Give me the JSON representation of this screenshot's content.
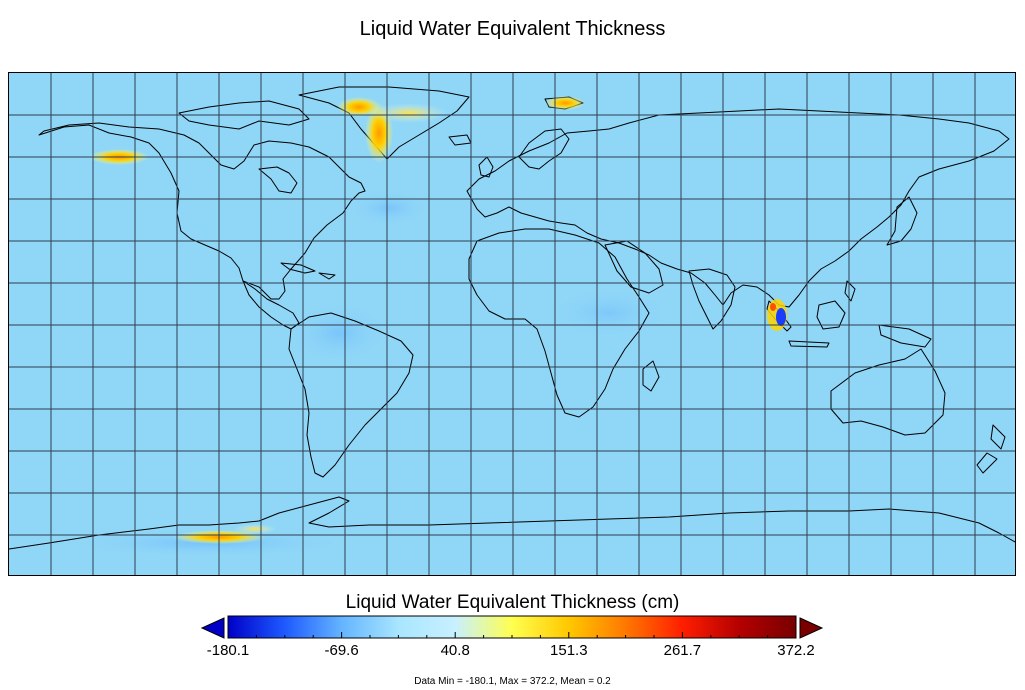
{
  "title": "Liquid Water Equivalent Thickness",
  "map": {
    "projection": "equirectangular",
    "grid": true,
    "ocean_color": "#8fd6f7",
    "land_color": "#8fd6f7",
    "coastline_color": "#000000",
    "anomalies": [
      {
        "region": "Greenland",
        "sign": "positive"
      },
      {
        "region": "Alaska",
        "sign": "positive"
      },
      {
        "region": "Svalbard",
        "sign": "positive"
      },
      {
        "region": "Antarctic Peninsula / Weddell",
        "sign": "positive"
      },
      {
        "region": "Sumatra",
        "sign": "mixed"
      }
    ]
  },
  "colorbar": {
    "title": "Liquid Water Equivalent Thickness (cm)",
    "min": -180.1,
    "max": 372.2,
    "ticks": [
      "-180.1",
      "-69.6",
      "40.8",
      "151.3",
      "261.7",
      "372.2"
    ],
    "colors": [
      "#0000c8",
      "#1e5aff",
      "#64b4ff",
      "#a8e6ff",
      "#c8f0ff",
      "#ffff50",
      "#ffc800",
      "#ff7800",
      "#ff1e00",
      "#b40000",
      "#780000"
    ],
    "under_color": "#0000c8",
    "over_color": "#7a0000"
  },
  "stats": "Data Min = -180.1, Max = 372.2, Mean = 0.2"
}
